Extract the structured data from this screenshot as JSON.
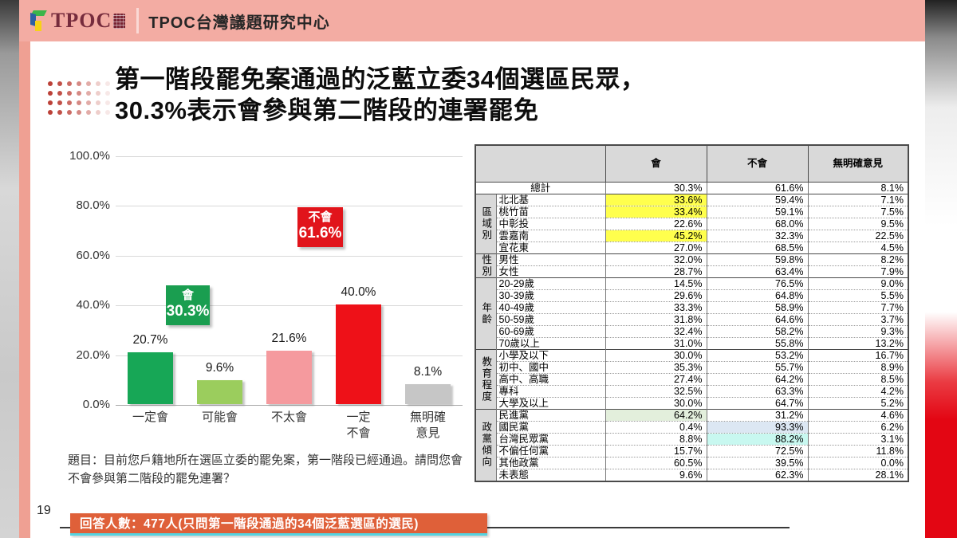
{
  "colors": {
    "header_pink": "#f3aca3",
    "side_strip_pink": "#efa093",
    "banner_orange": "#df6039",
    "banner_underline": "#55d3e0",
    "table_header_gray": "#d9d9d9",
    "grid_color": "#d9d9d9"
  },
  "header": {
    "logo_text": "TPOC",
    "title": "TPOC台灣議題研究中心"
  },
  "slide": {
    "title_line1": "第一階段罷免案通過的泛藍立委34個選區民眾，",
    "title_line2": "30.3%表示會參與第二階段的連署罷免",
    "question": "題目：目前您戶籍地所在選區立委的罷免案，第一階段已經通過。請問您會不會參與第二階段的罷免連署？",
    "page_number": "19",
    "footer_banner": "回答人數：477人(只問第一階段通過的34個泛藍選區的選民)"
  },
  "chart_data": {
    "type": "bar",
    "categories": [
      "一定會",
      "可能會",
      "不太會",
      "一定\n不會",
      "無明確\n意見"
    ],
    "values": [
      20.7,
      9.6,
      21.6,
      40.0,
      8.1
    ],
    "bar_colors": [
      "#17a756",
      "#9bcd5d",
      "#f59a9e",
      "#ee1118",
      "#c6c6c6"
    ],
    "ylim": [
      0,
      100
    ],
    "ytick_labels": [
      "100.0%",
      "80.0%",
      "60.0%",
      "40.0%",
      "20.0%",
      "0.0%"
    ],
    "grid": true,
    "legend": "none",
    "annotations": [
      {
        "name": "will",
        "label": "會",
        "value": "30.3%",
        "color": "#1a9e50"
      },
      {
        "name": "wont",
        "label": "不會",
        "value": "61.6%",
        "color": "#e1141b"
      }
    ]
  },
  "table": {
    "col_headers": [
      "會",
      "不會",
      "無明確意見"
    ],
    "total": {
      "label": "總計",
      "values": [
        "30.3%",
        "61.6%",
        "8.1%"
      ]
    },
    "groups": [
      {
        "name": "區域別",
        "rows": [
          {
            "label": "北北基",
            "values": [
              "33.6%",
              "59.4%",
              "7.1%"
            ],
            "hl": [
              "#ffff4d",
              null,
              null
            ]
          },
          {
            "label": "桃竹苗",
            "values": [
              "33.4%",
              "59.1%",
              "7.5%"
            ],
            "hl": [
              "#ffff4d",
              null,
              null
            ]
          },
          {
            "label": "中彰投",
            "values": [
              "22.6%",
              "68.0%",
              "9.5%"
            ],
            "hl": [
              null,
              null,
              null
            ]
          },
          {
            "label": "雲嘉南",
            "values": [
              "45.2%",
              "32.3%",
              "22.5%"
            ],
            "hl": [
              "#ffff4d",
              null,
              null
            ]
          },
          {
            "label": "宜花東",
            "values": [
              "27.0%",
              "68.5%",
              "4.5%"
            ],
            "hl": [
              null,
              null,
              null
            ]
          }
        ]
      },
      {
        "name": "性別",
        "rows": [
          {
            "label": "男性",
            "values": [
              "32.0%",
              "59.8%",
              "8.2%"
            ],
            "hl": [
              null,
              null,
              null
            ]
          },
          {
            "label": "女性",
            "values": [
              "28.7%",
              "63.4%",
              "7.9%"
            ],
            "hl": [
              null,
              null,
              null
            ]
          }
        ]
      },
      {
        "name": "年齡",
        "rows": [
          {
            "label": "20-29歲",
            "values": [
              "14.5%",
              "76.5%",
              "9.0%"
            ],
            "hl": [
              null,
              null,
              null
            ]
          },
          {
            "label": "30-39歲",
            "values": [
              "29.6%",
              "64.8%",
              "5.5%"
            ],
            "hl": [
              null,
              null,
              null
            ]
          },
          {
            "label": "40-49歲",
            "values": [
              "33.3%",
              "58.9%",
              "7.7%"
            ],
            "hl": [
              null,
              null,
              null
            ]
          },
          {
            "label": "50-59歲",
            "values": [
              "31.8%",
              "64.6%",
              "3.7%"
            ],
            "hl": [
              null,
              null,
              null
            ]
          },
          {
            "label": "60-69歲",
            "values": [
              "32.4%",
              "58.2%",
              "9.3%"
            ],
            "hl": [
              null,
              null,
              null
            ]
          },
          {
            "label": "70歲以上",
            "values": [
              "31.0%",
              "55.8%",
              "13.2%"
            ],
            "hl": [
              null,
              null,
              null
            ]
          }
        ]
      },
      {
        "name": "教育程度",
        "rows": [
          {
            "label": "小學及以下",
            "values": [
              "30.0%",
              "53.2%",
              "16.7%"
            ],
            "hl": [
              null,
              null,
              null
            ]
          },
          {
            "label": "初中、國中",
            "values": [
              "35.3%",
              "55.7%",
              "8.9%"
            ],
            "hl": [
              null,
              null,
              null
            ]
          },
          {
            "label": "高中、高職",
            "values": [
              "27.4%",
              "64.2%",
              "8.5%"
            ],
            "hl": [
              null,
              null,
              null
            ]
          },
          {
            "label": "專科",
            "values": [
              "32.5%",
              "63.3%",
              "4.2%"
            ],
            "hl": [
              null,
              null,
              null
            ]
          },
          {
            "label": "大學及以上",
            "values": [
              "30.0%",
              "64.7%",
              "5.2%"
            ],
            "hl": [
              null,
              null,
              null
            ]
          }
        ]
      },
      {
        "name": "政黨傾向",
        "rows": [
          {
            "label": "民進黨",
            "values": [
              "64.2%",
              "31.2%",
              "4.6%"
            ],
            "hl": [
              "#e3efdc",
              null,
              null
            ]
          },
          {
            "label": "國民黨",
            "values": [
              "0.4%",
              "93.3%",
              "6.2%"
            ],
            "hl": [
              null,
              "#dce7f3",
              null
            ]
          },
          {
            "label": "台灣民眾黨",
            "values": [
              "8.8%",
              "88.2%",
              "3.1%"
            ],
            "hl": [
              null,
              "#c8f8f0",
              null
            ]
          },
          {
            "label": "不偏任何黨",
            "values": [
              "15.7%",
              "72.5%",
              "11.8%"
            ],
            "hl": [
              null,
              null,
              null
            ]
          },
          {
            "label": "其他政黨",
            "values": [
              "60.5%",
              "39.5%",
              "0.0%"
            ],
            "hl": [
              null,
              null,
              null
            ]
          },
          {
            "label": "未表態",
            "values": [
              "9.6%",
              "62.3%",
              "28.1%"
            ],
            "hl": [
              null,
              null,
              null
            ]
          }
        ]
      }
    ]
  }
}
